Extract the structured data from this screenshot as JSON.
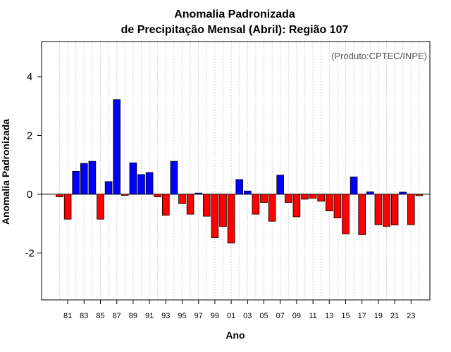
{
  "chart_data": {
    "type": "bar",
    "title": "Anomalia Padronizada",
    "subtitle": "de Precipitação Mensal (Abril): Região 107",
    "xlabel": "Ano",
    "ylabel": "Anomalia Padronizada",
    "credit": "(Produto:CPTEC/INPE)",
    "ylim": [
      -3.6,
      5.2
    ],
    "yticks": [
      -2,
      0,
      2,
      4
    ],
    "ytick_labels": [
      "-2",
      "0",
      "2",
      "4"
    ],
    "grid": "vertical dotted",
    "colors": {
      "positive": "#0000ff",
      "negative": "#ff0000"
    },
    "categories": [
      "1980",
      "1981",
      "1982",
      "1983",
      "1984",
      "1985",
      "1986",
      "1987",
      "1988",
      "1989",
      "1990",
      "1991",
      "1992",
      "1993",
      "1994",
      "1995",
      "1996",
      "1997",
      "1998",
      "1999",
      "2000",
      "2001",
      "2002",
      "2003",
      "2004",
      "2005",
      "2006",
      "2007",
      "2008",
      "2009",
      "2010",
      "2011",
      "2012",
      "2013",
      "2014",
      "2015",
      "2016",
      "2017",
      "2018",
      "2019",
      "2020",
      "2021",
      "2022",
      "2023",
      "2024"
    ],
    "values": [
      -0.09,
      -0.85,
      0.78,
      1.05,
      1.12,
      -0.85,
      0.43,
      3.22,
      -0.04,
      1.07,
      0.67,
      0.74,
      -0.09,
      -0.72,
      1.12,
      -0.32,
      -0.68,
      0.04,
      -0.75,
      -1.48,
      -1.1,
      -1.66,
      0.5,
      0.11,
      -0.68,
      -0.28,
      -0.92,
      0.65,
      -0.28,
      -0.77,
      -0.17,
      -0.14,
      -0.24,
      -0.57,
      -0.81,
      -1.35,
      0.59,
      -1.38,
      0.08,
      -1.04,
      -1.1,
      -1.05,
      0.07,
      -1.04,
      -0.05
    ],
    "xtick_labels": [
      "81",
      "83",
      "85",
      "87",
      "89",
      "91",
      "93",
      "95",
      "97",
      "99",
      "01",
      "03",
      "05",
      "07",
      "09",
      "11",
      "13",
      "15",
      "17",
      "19",
      "21",
      "23"
    ],
    "xtick_years": [
      "1981",
      "1983",
      "1985",
      "1987",
      "1989",
      "1991",
      "1993",
      "1995",
      "1997",
      "1999",
      "2001",
      "2003",
      "2005",
      "2007",
      "2009",
      "2011",
      "2013",
      "2015",
      "2017",
      "2019",
      "2021",
      "2023"
    ]
  }
}
